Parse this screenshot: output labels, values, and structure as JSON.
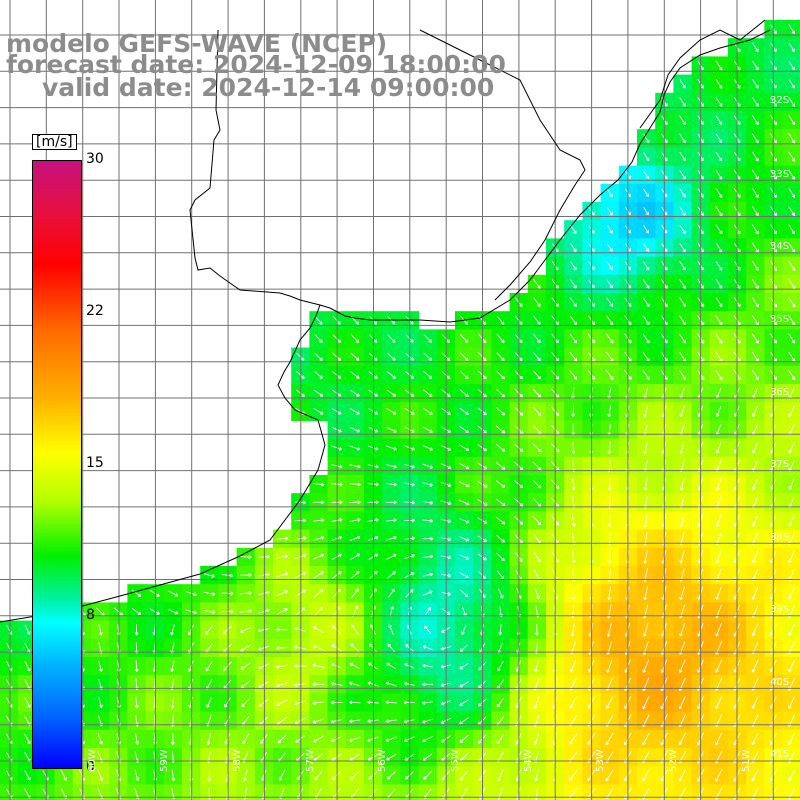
{
  "titles": {
    "line1": "modelo GEFS-WAVE (NCEP)",
    "line2": "forecast date: 2024-12-09 18:00:00",
    "line3": "valid date: 2024-12-14 09:00:00"
  },
  "colorbar": {
    "unit": "[m/s]",
    "ticks": [
      "30",
      "22",
      "15",
      "8",
      "0"
    ]
  },
  "lat_labels": [
    "32S",
    "33S",
    "34S",
    "35S",
    "36S",
    "37S",
    "38S",
    "39S",
    "40S",
    "41S"
  ],
  "lon_labels": [
    "60W",
    "59W",
    "58W",
    "57W",
    "56W",
    "55W",
    "54W",
    "53W",
    "52W",
    "51W"
  ],
  "colors": {
    "land": "#ffffff",
    "grid": "#707070",
    "coast": "#000000",
    "arrows": "#ffffff",
    "title": "#8c8c8c"
  }
}
